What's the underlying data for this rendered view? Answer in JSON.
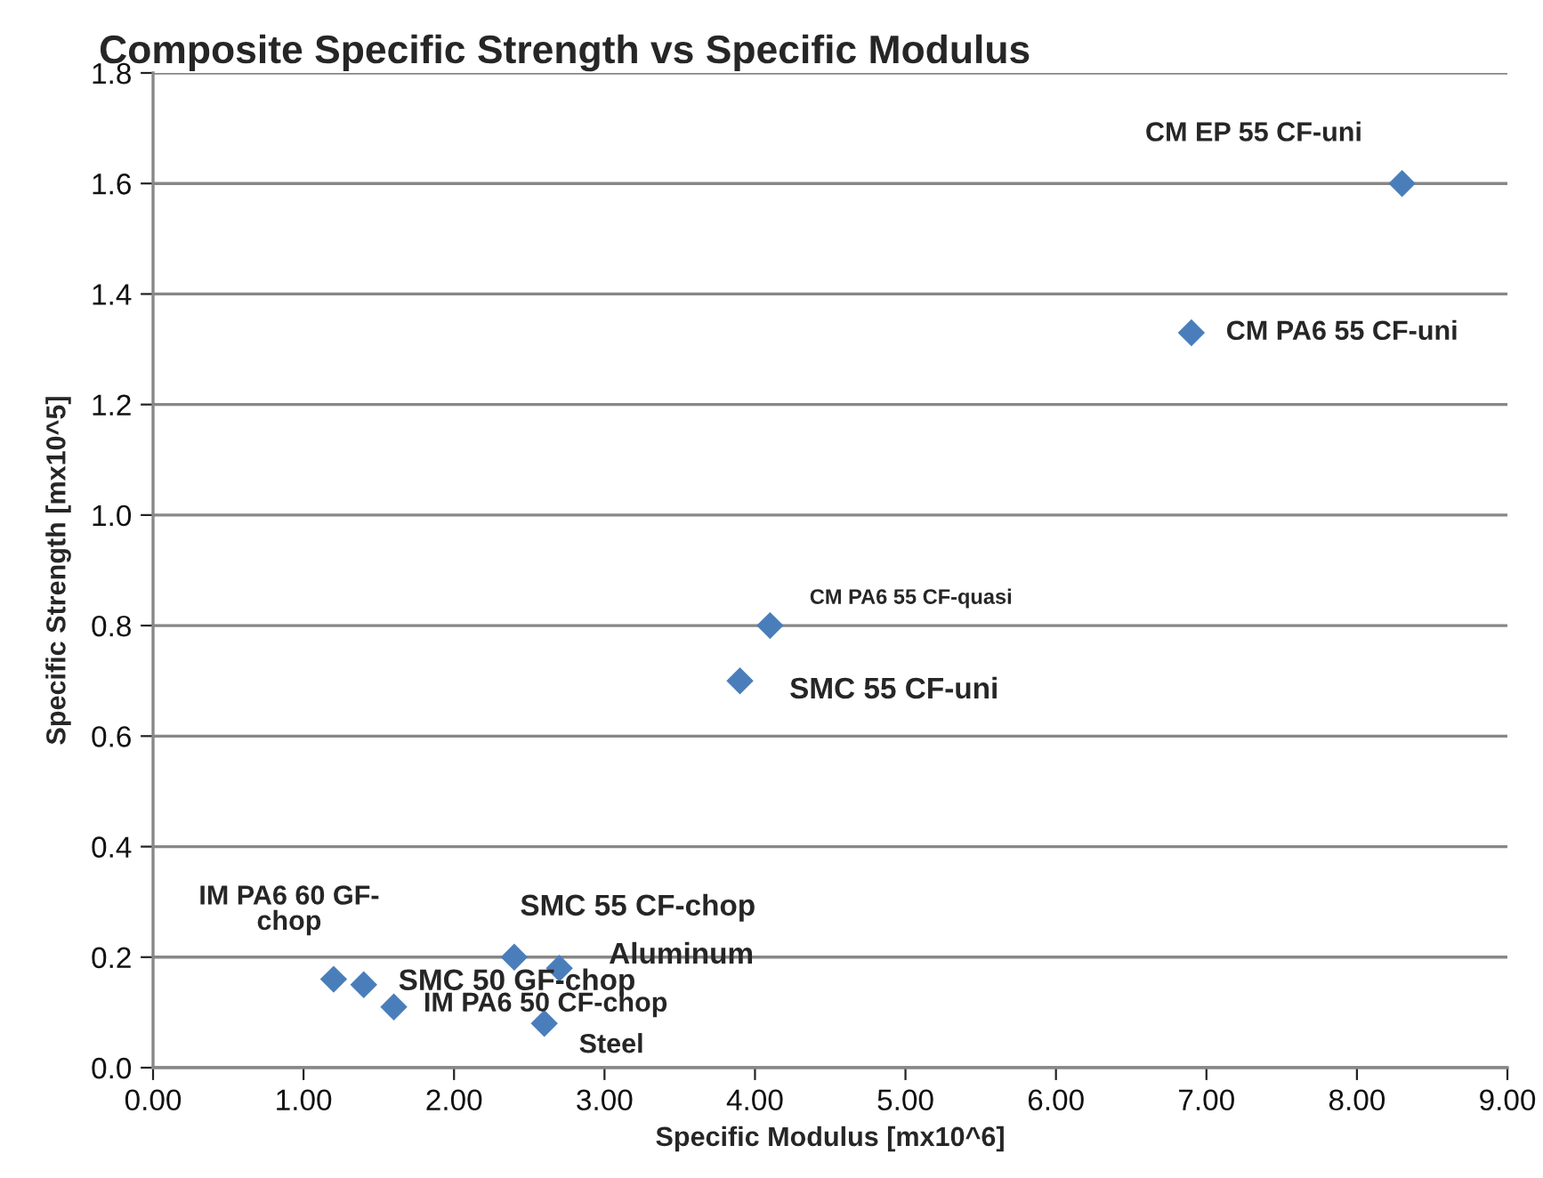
{
  "chart_data": {
    "type": "scatter",
    "title": "Composite Specific Strength vs Specific Modulus",
    "xlabel": "Specific Modulus [mx10^6]",
    "ylabel": "Specific Strength [mx10^5]",
    "x": [
      8.3,
      6.9,
      4.1,
      3.9,
      1.2,
      1.4,
      1.6,
      2.4,
      2.7,
      2.6
    ],
    "series": [
      {
        "color": "#4a7ebb",
        "values": [
          1.6,
          1.33,
          0.8,
          0.7,
          0.16,
          0.15,
          0.11,
          0.2,
          0.18,
          0.08
        ]
      }
    ],
    "marker": "diamond",
    "grid": "y",
    "legend": false,
    "xlim": [
      0,
      9
    ],
    "xticks": [
      {
        "value": 0,
        "label": "0.00"
      },
      {
        "value": 1,
        "label": "1.00"
      },
      {
        "value": 2,
        "label": "2.00"
      },
      {
        "value": 3,
        "label": "3.00"
      },
      {
        "value": 4,
        "label": "4.00"
      },
      {
        "value": 5,
        "label": "5.00"
      },
      {
        "value": 6,
        "label": "6.00"
      },
      {
        "value": 7,
        "label": "7.00"
      },
      {
        "value": 8,
        "label": "8.00"
      },
      {
        "value": 9,
        "label": "9.00"
      }
    ],
    "ylim": [
      0,
      1.8
    ],
    "yticks": [
      {
        "value": 0,
        "label": "0.0"
      },
      {
        "value": 0.2,
        "label": "0.2"
      },
      {
        "value": 0.4,
        "label": "0.4"
      },
      {
        "value": 0.6,
        "label": "0.6"
      },
      {
        "value": 0.8,
        "label": "0.8"
      },
      {
        "value": 1.0,
        "label": "1.0"
      },
      {
        "value": 1.2,
        "label": "1.2"
      },
      {
        "value": 1.4,
        "label": "1.4"
      },
      {
        "value": 1.6,
        "label": "1.6"
      },
      {
        "value": 1.8,
        "label": "1.8"
      }
    ],
    "annotations": [
      {
        "text": "CM EP 55 CF-uni",
        "x": 8.3,
        "y": 1.6
      },
      {
        "text": "CM PA6 55 CF-uni",
        "x": 6.9,
        "y": 1.33
      },
      {
        "text": "CM PA6 55 CF-quasi",
        "x": 4.1,
        "y": 0.8
      },
      {
        "text": "SMC 55 CF-uni",
        "x": 3.9,
        "y": 0.7
      },
      {
        "text": "IM PA6 60 GF-\nchop",
        "x": 1.2,
        "y": 0.16
      },
      {
        "text": "SMC 50 GF-chop",
        "x": 1.4,
        "y": 0.15
      },
      {
        "text": "IM PA6 50 CF-chop",
        "x": 1.6,
        "y": 0.11
      },
      {
        "text": "SMC 55 CF-chop",
        "x": 2.4,
        "y": 0.2
      },
      {
        "text": "Aluminum",
        "x": 2.7,
        "y": 0.18
      },
      {
        "text": "Steel",
        "x": 2.6,
        "y": 0.08
      }
    ]
  }
}
